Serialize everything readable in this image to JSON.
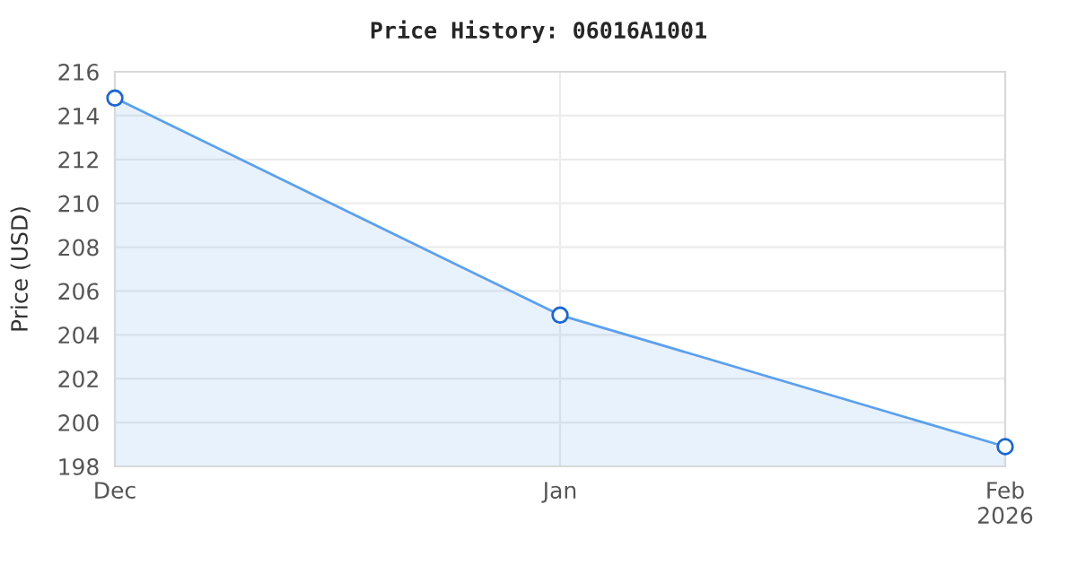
{
  "chart_data": {
    "type": "area",
    "title": "Price History: 06016A1001",
    "ylabel": "Price (USD)",
    "x": [
      "2025-12-01",
      "2026-01-01",
      "2026-02-01"
    ],
    "series": [
      {
        "color": "#5aa0f0",
        "values": [
          214.8,
          204.9,
          198.9
        ]
      }
    ],
    "xlim": [
      "2025-12-01",
      "2026-02-01"
    ],
    "xticks": [
      {
        "value": "2025-12-01",
        "label": "Dec"
      },
      {
        "value": "2026-01-01",
        "label": "Jan"
      },
      {
        "value": "2026-02-01",
        "label": "Feb\n2026"
      }
    ],
    "ylim": [
      198,
      216
    ],
    "yticks": [
      198,
      200,
      202,
      204,
      206,
      208,
      210,
      212,
      214,
      216
    ],
    "grid": true,
    "marker": "circle",
    "line_style": "solid"
  }
}
